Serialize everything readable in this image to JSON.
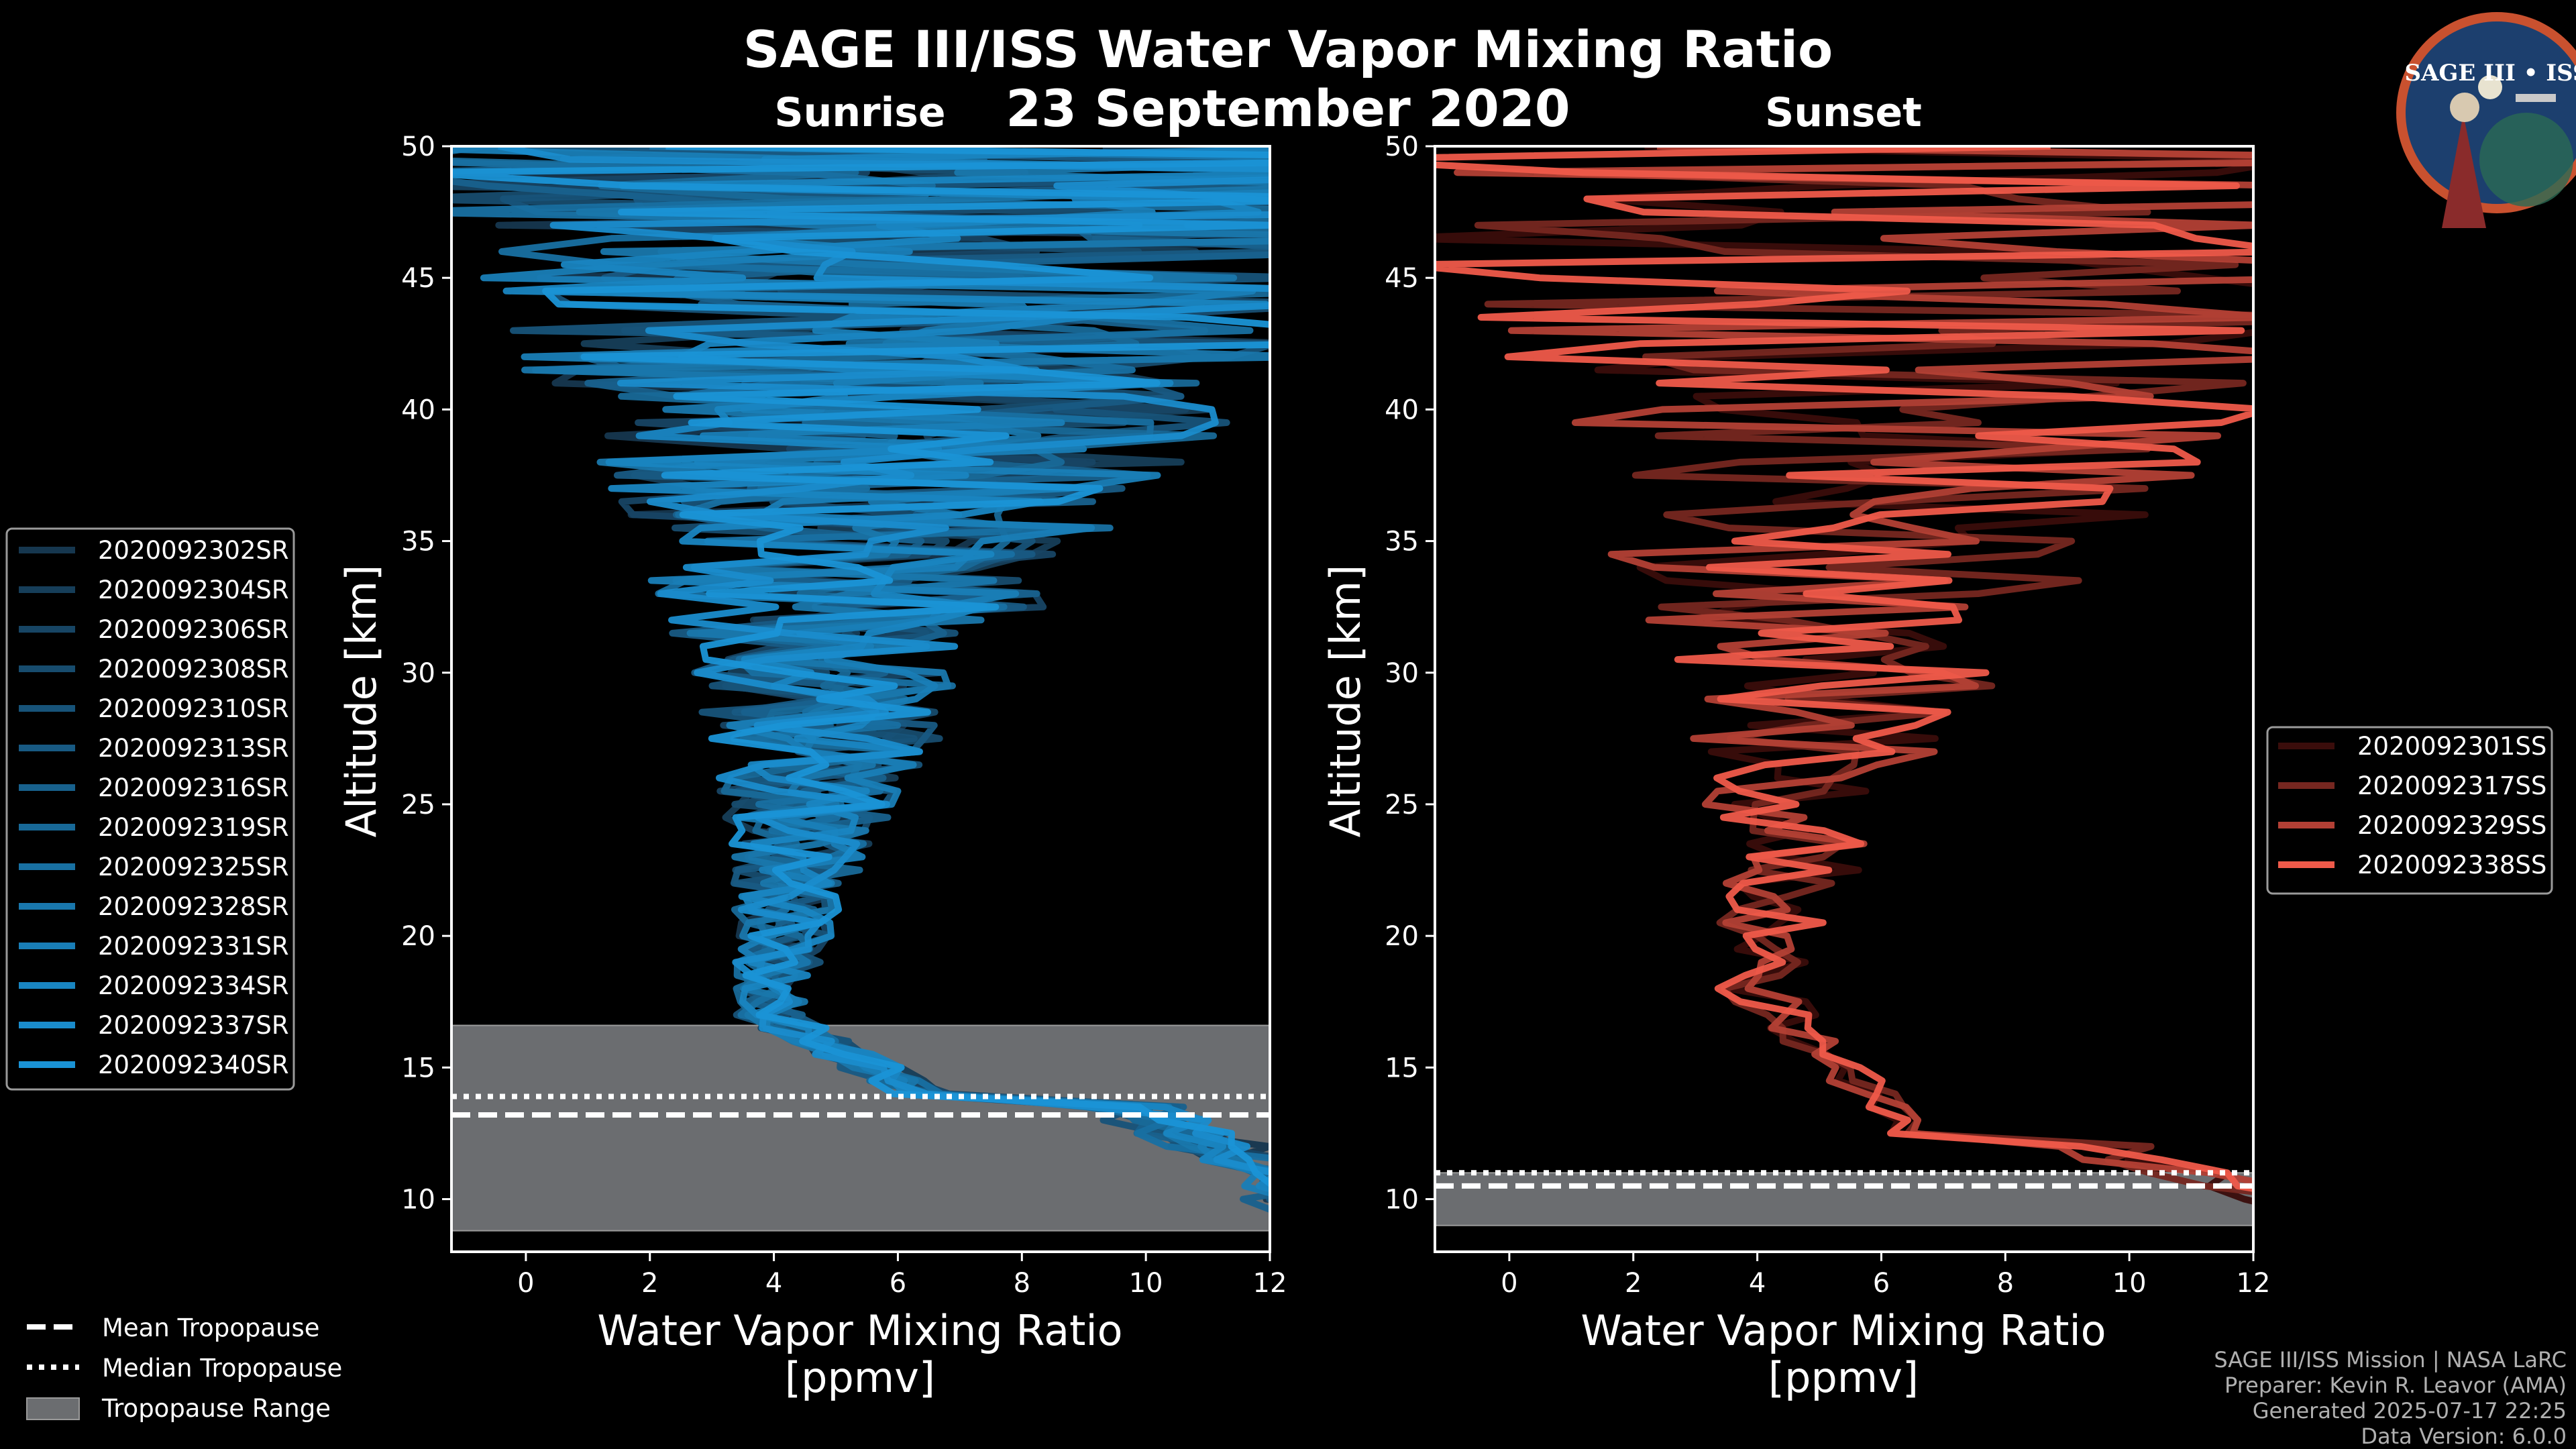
{
  "chart_data": {
    "type": "line",
    "title": "SAGE III/ISS Water Vapor Mixing Ratio",
    "date_label": "23 September 2020",
    "panels": [
      {
        "id": "sunrise",
        "subtitle": "Sunrise",
        "xlabel_line1": "Water Vapor Mixing Ratio",
        "xlabel_line2": "[ppmv]",
        "ylabel": "Altitude [km]",
        "xlim": [
          -1.2,
          12
        ],
        "ylim": [
          8,
          50
        ],
        "xticks": [
          0,
          2,
          4,
          6,
          8,
          10,
          12
        ],
        "yticks": [
          10,
          15,
          20,
          25,
          30,
          35,
          40,
          45,
          50
        ],
        "tropopause": {
          "mean": 13.2,
          "median": 13.9,
          "range": [
            8.8,
            16.6
          ]
        },
        "series_color_start": "#16374f",
        "series_color_end": "#1a93d6",
        "series": [
          {
            "name": "2020092302SR",
            "seed": 11
          },
          {
            "name": "2020092304SR",
            "seed": 23
          },
          {
            "name": "2020092306SR",
            "seed": 37
          },
          {
            "name": "2020092308SR",
            "seed": 41
          },
          {
            "name": "2020092310SR",
            "seed": 53
          },
          {
            "name": "2020092313SR",
            "seed": 67
          },
          {
            "name": "2020092316SR",
            "seed": 71
          },
          {
            "name": "2020092319SR",
            "seed": 83
          },
          {
            "name": "2020092325SR",
            "seed": 97
          },
          {
            "name": "2020092328SR",
            "seed": 101
          },
          {
            "name": "2020092331SR",
            "seed": 113
          },
          {
            "name": "2020092334SR",
            "seed": 127
          },
          {
            "name": "2020092337SR",
            "seed": 131
          },
          {
            "name": "2020092340SR",
            "seed": 149
          }
        ],
        "profile": {
          "surface_value": 12.5,
          "tropo_alt": 14.0,
          "min_value": 3.9,
          "min_alt": 17.0,
          "mid_alt": 30,
          "mid_value": 5.0,
          "top_value": 7.0,
          "noise_low": 0.5,
          "noise_high": 4.5
        }
      },
      {
        "id": "sunset",
        "subtitle": "Sunset",
        "xlabel_line1": "Water Vapor Mixing Ratio",
        "xlabel_line2": "[ppmv]",
        "ylabel": "Altitude [km]",
        "xlim": [
          -1.2,
          12
        ],
        "ylim": [
          8,
          50
        ],
        "xticks": [
          0,
          2,
          4,
          6,
          8,
          10,
          12
        ],
        "yticks": [
          10,
          15,
          20,
          25,
          30,
          35,
          40,
          45,
          50
        ],
        "tropopause": {
          "mean": 10.5,
          "median": 11.0,
          "range": [
            9.0,
            11.0
          ]
        },
        "series_color_start": "#3a0d0b",
        "series_color_end": "#ef5a4a",
        "series": [
          {
            "name": "2020092301SS",
            "seed": 7
          },
          {
            "name": "2020092317SS",
            "seed": 19
          },
          {
            "name": "2020092329SS",
            "seed": 29
          },
          {
            "name": "2020092338SS",
            "seed": 43
          }
        ],
        "profile": {
          "surface_value": 12.2,
          "tropo_alt": 12.5,
          "min_value": 4.0,
          "min_alt": 18.0,
          "mid_alt": 30,
          "mid_value": 5.3,
          "top_value": 7.5,
          "noise_low": 0.4,
          "noise_high": 5.0
        }
      }
    ],
    "legend_tropopause": {
      "mean_label": "Mean Tropopause",
      "median_label": "Median Tropopause",
      "range_label": "Tropopause Range"
    }
  },
  "logo": {
    "text": "SAGE III • ISS"
  },
  "credits": {
    "line1": "SAGE III/ISS Mission | NASA LaRC",
    "line2": "Preparer: Kevin R. Leavor (AMA)",
    "line3": "Generated 2025-07-17 22:25",
    "line4": "Data Version: 6.0.0"
  }
}
